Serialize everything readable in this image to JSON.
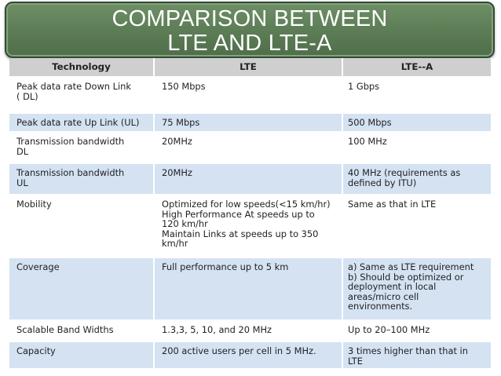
{
  "title": {
    "line1": "COMPARISON BETWEEN",
    "line2": "LTE AND LTE-A"
  },
  "table": {
    "headers": [
      "Technology",
      "LTE",
      "LTE--A"
    ],
    "rows": [
      {
        "technology": "Peak data rate Down Link\n( DL)",
        "lte": "150 Mbps",
        "ltea": "1 Gbps"
      },
      {
        "technology": "Peak data rate Up Link (UL)",
        "lte": "75 Mbps",
        "ltea": "500 Mbps"
      },
      {
        "technology": "Transmission bandwidth\nDL",
        "lte": "20MHz",
        "ltea": "100 MHz"
      },
      {
        "technology": "Transmission bandwidth\nUL",
        "lte": "20MHz",
        "ltea": "40 MHz (requirements as\ndefined by ITU)"
      },
      {
        "technology": "Mobility",
        "lte": "Optimized for low speeds(<15 km/hr)\nHigh Performance At speeds up to\n120 km/hr\nMaintain Links at speeds up to 350\nkm/hr",
        "ltea": "Same as that in LTE"
      },
      {
        "technology": "Coverage",
        "lte": "Full performance up to 5 km",
        "ltea": "a) Same as LTE requirement\nb) Should be optimized or\ndeployment in local\nareas/micro cell\nenvironments."
      },
      {
        "technology": "Scalable Band Widths",
        "lte": "1.3,3, 5, 10, and 20 MHz",
        "ltea": "Up to 20–100 MHz"
      },
      {
        "technology": "Capacity",
        "lte": "200 active users per cell in    5 MHz.",
        "ltea": "3 times higher than that in\nLTE"
      }
    ]
  }
}
